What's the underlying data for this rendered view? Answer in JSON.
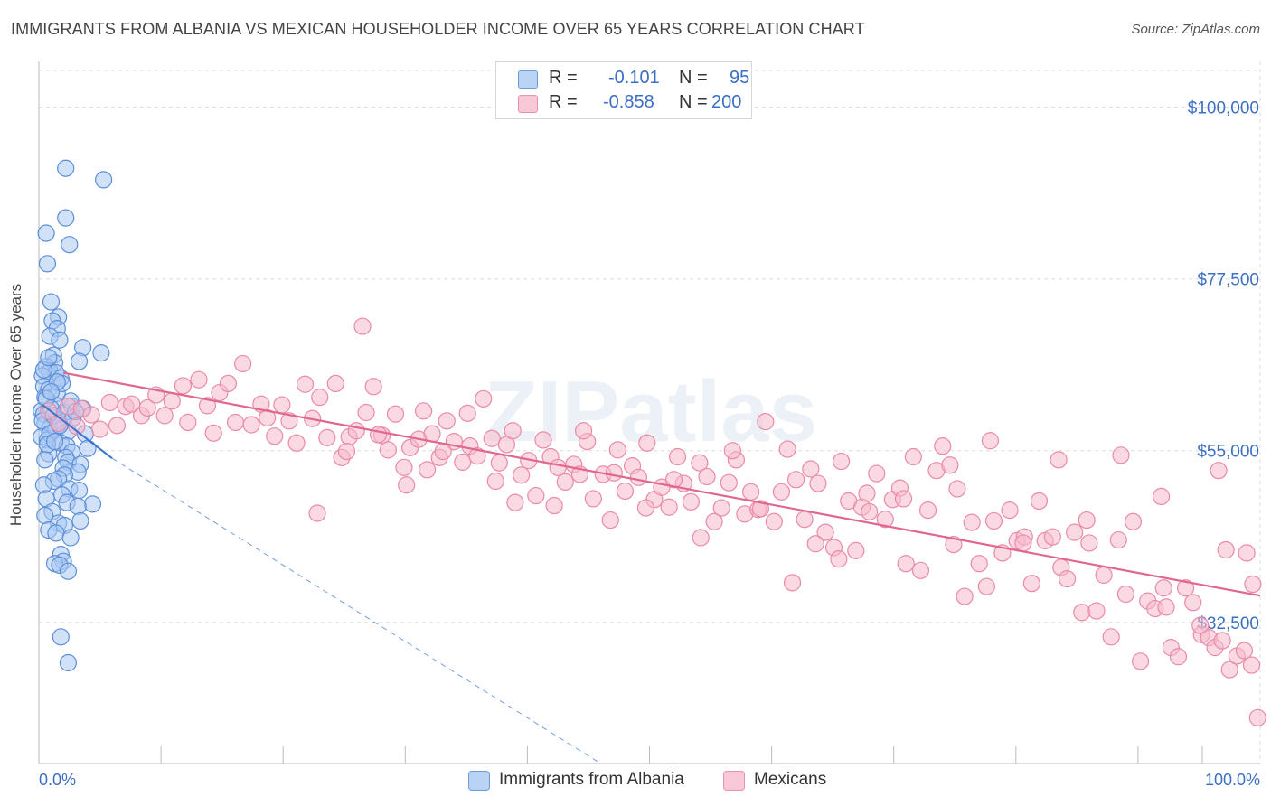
{
  "title": "IMMIGRANTS FROM ALBANIA VS MEXICAN HOUSEHOLDER INCOME OVER 65 YEARS CORRELATION CHART",
  "source": "Source: ZipAtlas.com",
  "watermark": "ZIPatlas",
  "legend": {
    "rows": [
      {
        "r_label": "R =",
        "r_value": "-0.101",
        "n_label": "N =",
        "n_value": "95"
      },
      {
        "r_label": "R =",
        "r_value": "-0.858",
        "n_label": "N =",
        "n_value": "200"
      }
    ]
  },
  "bottom_legend": [
    "Immigrants from Albania",
    "Mexicans"
  ],
  "colors": {
    "blue_fill": "#a9c9f2",
    "blue_stroke": "#5b8fd9",
    "blue_line": "#3b74d0",
    "pink_fill": "#f7b9cc",
    "pink_stroke": "#e98aa8",
    "pink_line": "#e0678f",
    "axis_text": "#3a6fc4",
    "grid": "#dcdcdc"
  },
  "chart_data": {
    "type": "scatter",
    "xlabel": "",
    "ylabel": "Householder Income Over 65 years",
    "xlim": [
      0,
      100
    ],
    "ylim": [
      14000,
      106000
    ],
    "x_tick_labels": [
      "0.0%",
      "100.0%"
    ],
    "y_ticks": [
      {
        "value": 100000,
        "label": "$100,000"
      },
      {
        "value": 77500,
        "label": "$77,500"
      },
      {
        "value": 55000,
        "label": "$55,000"
      },
      {
        "value": 32500,
        "label": "$32,500"
      }
    ],
    "grid": true,
    "series": [
      {
        "name": "Immigrants from Albania",
        "color": "blue",
        "trend": {
          "x": [
            0.3,
            6.0
          ],
          "y": [
            61000,
            54000
          ],
          "extended_x": 46,
          "extended_y": 14000
        },
        "points": [
          [
            2.2,
            92000
          ],
          [
            5.3,
            90500
          ],
          [
            2.2,
            85500
          ],
          [
            0.6,
            83500
          ],
          [
            2.5,
            82000
          ],
          [
            0.7,
            79500
          ],
          [
            1.0,
            74500
          ],
          [
            1.6,
            72500
          ],
          [
            1.1,
            72000
          ],
          [
            1.5,
            71000
          ],
          [
            0.9,
            70000
          ],
          [
            1.7,
            69500
          ],
          [
            3.6,
            68500
          ],
          [
            5.1,
            67800
          ],
          [
            1.2,
            67500
          ],
          [
            1.3,
            66500
          ],
          [
            3.3,
            66700
          ],
          [
            0.6,
            66000
          ],
          [
            0.9,
            65400
          ],
          [
            1.4,
            65200
          ],
          [
            0.3,
            64800
          ],
          [
            1.8,
            64500
          ],
          [
            0.4,
            63400
          ],
          [
            0.8,
            63000
          ],
          [
            1.5,
            62500
          ],
          [
            0.5,
            62000
          ],
          [
            1.3,
            61000
          ],
          [
            2.7,
            60800
          ],
          [
            3.6,
            60500
          ],
          [
            0.2,
            60200
          ],
          [
            0.4,
            59800
          ],
          [
            1.1,
            59400
          ],
          [
            1.6,
            59000
          ],
          [
            2.0,
            58800
          ],
          [
            0.5,
            58500
          ],
          [
            0.9,
            58000
          ],
          [
            1.4,
            57800
          ],
          [
            2.4,
            57500
          ],
          [
            3.8,
            57200
          ],
          [
            0.2,
            56800
          ],
          [
            0.7,
            56400
          ],
          [
            1.8,
            56000
          ],
          [
            2.3,
            55600
          ],
          [
            4.0,
            55300
          ],
          [
            2.7,
            54800
          ],
          [
            0.8,
            54600
          ],
          [
            2.2,
            54100
          ],
          [
            2.4,
            53500
          ],
          [
            3.4,
            53200
          ],
          [
            2.0,
            52700
          ],
          [
            3.2,
            52200
          ],
          [
            2.1,
            51800
          ],
          [
            1.6,
            51300
          ],
          [
            1.2,
            51000
          ],
          [
            0.4,
            50500
          ],
          [
            2.5,
            50000
          ],
          [
            3.3,
            49800
          ],
          [
            1.9,
            49200
          ],
          [
            0.6,
            48700
          ],
          [
            2.3,
            48200
          ],
          [
            4.4,
            48000
          ],
          [
            3.2,
            47700
          ],
          [
            1.1,
            47000
          ],
          [
            0.5,
            46500
          ],
          [
            3.4,
            45800
          ],
          [
            1.6,
            45500
          ],
          [
            2.1,
            45200
          ],
          [
            0.8,
            44600
          ],
          [
            1.4,
            44200
          ],
          [
            2.6,
            43600
          ],
          [
            1.8,
            41400
          ],
          [
            2.0,
            40500
          ],
          [
            1.3,
            40200
          ],
          [
            1.7,
            40000
          ],
          [
            2.4,
            39200
          ],
          [
            1.8,
            30600
          ],
          [
            2.4,
            27200
          ],
          [
            1.0,
            60500
          ],
          [
            1.9,
            63800
          ],
          [
            0.3,
            58900
          ],
          [
            0.6,
            61800
          ],
          [
            1.2,
            59600
          ],
          [
            2.1,
            60000
          ],
          [
            0.9,
            57200
          ],
          [
            1.5,
            64000
          ],
          [
            0.7,
            55800
          ],
          [
            2.8,
            59300
          ],
          [
            1.0,
            62700
          ],
          [
            0.4,
            65600
          ],
          [
            1.7,
            58300
          ],
          [
            0.8,
            67200
          ],
          [
            2.6,
            61500
          ],
          [
            1.3,
            56200
          ],
          [
            0.5,
            53800
          ],
          [
            3.0,
            60100
          ]
        ]
      },
      {
        "name": "Mexicans",
        "color": "pink",
        "trend": {
          "x": [
            2.0,
            100.0
          ],
          "y": [
            65200,
            36000
          ]
        },
        "points": [
          [
            0.8,
            60200
          ],
          [
            1.6,
            58600
          ],
          [
            2.4,
            60800
          ],
          [
            3.1,
            58200
          ],
          [
            3.5,
            60500
          ],
          [
            4.3,
            59700
          ],
          [
            5.0,
            57800
          ],
          [
            5.8,
            61300
          ],
          [
            6.4,
            58300
          ],
          [
            7.1,
            60800
          ],
          [
            7.6,
            61100
          ],
          [
            8.4,
            59600
          ],
          [
            8.9,
            60600
          ],
          [
            9.6,
            62300
          ],
          [
            10.3,
            59600
          ],
          [
            10.9,
            61500
          ],
          [
            11.8,
            63500
          ],
          [
            12.2,
            58700
          ],
          [
            13.1,
            64300
          ],
          [
            13.8,
            60900
          ],
          [
            14.3,
            57300
          ],
          [
            14.8,
            62600
          ],
          [
            15.5,
            63800
          ],
          [
            16.1,
            58700
          ],
          [
            16.7,
            66400
          ],
          [
            17.4,
            58400
          ],
          [
            18.2,
            61100
          ],
          [
            18.7,
            59300
          ],
          [
            19.3,
            56900
          ],
          [
            19.9,
            61000
          ],
          [
            20.5,
            58900
          ],
          [
            21.1,
            56000
          ],
          [
            21.8,
            63700
          ],
          [
            22.4,
            59200
          ],
          [
            23.0,
            62000
          ],
          [
            23.6,
            56700
          ],
          [
            24.3,
            63800
          ],
          [
            24.8,
            54100
          ],
          [
            25.4,
            56800
          ],
          [
            26.0,
            57600
          ],
          [
            26.8,
            60000
          ],
          [
            27.4,
            63400
          ],
          [
            28.1,
            57000
          ],
          [
            28.6,
            55100
          ],
          [
            29.2,
            59800
          ],
          [
            29.9,
            52800
          ],
          [
            30.4,
            55400
          ],
          [
            31.1,
            56500
          ],
          [
            31.5,
            60200
          ],
          [
            32.2,
            57200
          ],
          [
            32.8,
            54100
          ],
          [
            33.4,
            58900
          ],
          [
            34.0,
            56200
          ],
          [
            34.7,
            53500
          ],
          [
            35.3,
            55600
          ],
          [
            35.9,
            54300
          ],
          [
            36.4,
            61800
          ],
          [
            37.1,
            56600
          ],
          [
            37.7,
            53400
          ],
          [
            38.3,
            55800
          ],
          [
            38.8,
            57600
          ],
          [
            39.5,
            51800
          ],
          [
            40.1,
            53700
          ],
          [
            40.7,
            49100
          ],
          [
            41.3,
            56400
          ],
          [
            41.9,
            54200
          ],
          [
            42.5,
            52800
          ],
          [
            43.1,
            50900
          ],
          [
            43.8,
            53200
          ],
          [
            44.3,
            51900
          ],
          [
            44.9,
            56200
          ],
          [
            45.4,
            48700
          ],
          [
            46.2,
            51900
          ],
          [
            46.8,
            45900
          ],
          [
            47.4,
            55100
          ],
          [
            48.0,
            49700
          ],
          [
            48.6,
            53000
          ],
          [
            49.1,
            51500
          ],
          [
            49.8,
            56000
          ],
          [
            50.4,
            48600
          ],
          [
            51.0,
            50200
          ],
          [
            51.6,
            47600
          ],
          [
            52.3,
            54200
          ],
          [
            52.8,
            50700
          ],
          [
            53.4,
            48300
          ],
          [
            54.1,
            53400
          ],
          [
            54.7,
            51600
          ],
          [
            55.3,
            45700
          ],
          [
            55.9,
            47500
          ],
          [
            56.5,
            50800
          ],
          [
            57.1,
            53800
          ],
          [
            57.8,
            46700
          ],
          [
            58.3,
            49600
          ],
          [
            58.9,
            47300
          ],
          [
            59.5,
            58800
          ],
          [
            60.2,
            45700
          ],
          [
            60.8,
            49600
          ],
          [
            61.3,
            55200
          ],
          [
            62.0,
            51200
          ],
          [
            62.7,
            46000
          ],
          [
            63.2,
            52600
          ],
          [
            63.8,
            50700
          ],
          [
            64.4,
            44300
          ],
          [
            65.1,
            42300
          ],
          [
            65.7,
            53600
          ],
          [
            66.3,
            48400
          ],
          [
            66.9,
            41900
          ],
          [
            67.4,
            47600
          ],
          [
            68.0,
            47000
          ],
          [
            68.6,
            52000
          ],
          [
            69.3,
            46000
          ],
          [
            69.9,
            48600
          ],
          [
            70.5,
            50100
          ],
          [
            71.0,
            40200
          ],
          [
            71.6,
            54200
          ],
          [
            72.2,
            39300
          ],
          [
            72.8,
            47200
          ],
          [
            73.5,
            52400
          ],
          [
            74.0,
            55600
          ],
          [
            74.6,
            53100
          ],
          [
            75.2,
            50000
          ],
          [
            75.8,
            35900
          ],
          [
            76.4,
            45600
          ],
          [
            77.0,
            40200
          ],
          [
            77.6,
            37200
          ],
          [
            78.2,
            45800
          ],
          [
            78.9,
            41600
          ],
          [
            79.5,
            47200
          ],
          [
            80.1,
            43200
          ],
          [
            80.7,
            43700
          ],
          [
            81.3,
            37600
          ],
          [
            81.9,
            48400
          ],
          [
            82.4,
            43200
          ],
          [
            83.0,
            43700
          ],
          [
            83.7,
            39700
          ],
          [
            84.2,
            38200
          ],
          [
            84.8,
            44300
          ],
          [
            85.4,
            33800
          ],
          [
            86.0,
            42900
          ],
          [
            86.6,
            34000
          ],
          [
            87.2,
            38700
          ],
          [
            87.8,
            30600
          ],
          [
            88.4,
            43300
          ],
          [
            89.0,
            36200
          ],
          [
            89.6,
            45700
          ],
          [
            90.2,
            27400
          ],
          [
            90.8,
            35300
          ],
          [
            91.4,
            34300
          ],
          [
            92.1,
            37000
          ],
          [
            92.7,
            29200
          ],
          [
            93.3,
            28000
          ],
          [
            93.9,
            37000
          ],
          [
            94.5,
            35100
          ],
          [
            95.2,
            30900
          ],
          [
            95.8,
            30500
          ],
          [
            96.3,
            29200
          ],
          [
            96.9,
            30100
          ],
          [
            97.5,
            26300
          ],
          [
            98.1,
            28100
          ],
          [
            98.7,
            28800
          ],
          [
            99.3,
            26900
          ],
          [
            99.8,
            20000
          ],
          [
            96.6,
            52400
          ],
          [
            95.1,
            32100
          ],
          [
            98.9,
            41600
          ],
          [
            99.4,
            37500
          ],
          [
            88.6,
            54400
          ],
          [
            92.3,
            34500
          ],
          [
            97.2,
            42000
          ],
          [
            91.9,
            49000
          ],
          [
            85.8,
            45900
          ],
          [
            83.5,
            53800
          ],
          [
            80.6,
            42900
          ],
          [
            77.9,
            56300
          ],
          [
            74.9,
            42700
          ],
          [
            70.8,
            48700
          ],
          [
            67.8,
            49400
          ],
          [
            65.5,
            40800
          ],
          [
            63.6,
            42800
          ],
          [
            61.7,
            37700
          ],
          [
            59.1,
            47400
          ],
          [
            56.8,
            55000
          ],
          [
            54.2,
            43600
          ],
          [
            52.0,
            51200
          ],
          [
            49.7,
            47500
          ],
          [
            47.1,
            52100
          ],
          [
            44.6,
            57600
          ],
          [
            42.2,
            47800
          ],
          [
            39.0,
            48200
          ],
          [
            37.4,
            51000
          ],
          [
            35.1,
            59900
          ],
          [
            33.1,
            54900
          ],
          [
            31.8,
            52500
          ],
          [
            30.1,
            50500
          ],
          [
            27.8,
            57100
          ],
          [
            26.5,
            71300
          ],
          [
            25.2,
            54900
          ],
          [
            22.8,
            46800
          ]
        ]
      }
    ]
  }
}
